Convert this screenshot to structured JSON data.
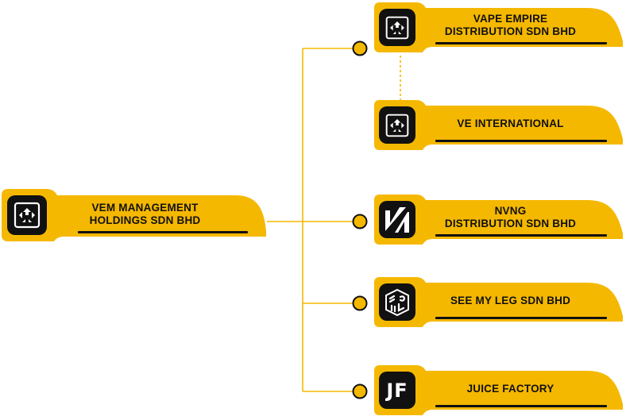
{
  "colors": {
    "accent": "#F5B800",
    "accent_edge": "#E9A800",
    "dark": "#111111",
    "line": "#F5B800"
  },
  "parent": {
    "line1": "VEM MANAGEMENT",
    "line2": "HOLDINGS SDN BHD",
    "logo_icon": "vem-logo-icon"
  },
  "subsidiaries": [
    {
      "line1": "VAPE EMPIRE",
      "line2": "DISTRIBUTION SDN BHD",
      "logo_icon": "vape-empire-logo-icon"
    },
    {
      "line1": "VE INTERNATIONAL",
      "line2": "",
      "logo_icon": "ve-international-logo-icon"
    },
    {
      "line1": "NVNG",
      "line2": "DISTRIBUTION SDN BHD",
      "logo_icon": "nvng-logo-icon"
    },
    {
      "line1": "SEE MY LEG SDN BHD",
      "line2": "",
      "logo_icon": "see-my-leg-logo-icon"
    },
    {
      "line1": "JUICE FACTORY",
      "line2": "",
      "logo_icon": "juice-factory-logo-icon",
      "logo_text": "JF"
    }
  ]
}
